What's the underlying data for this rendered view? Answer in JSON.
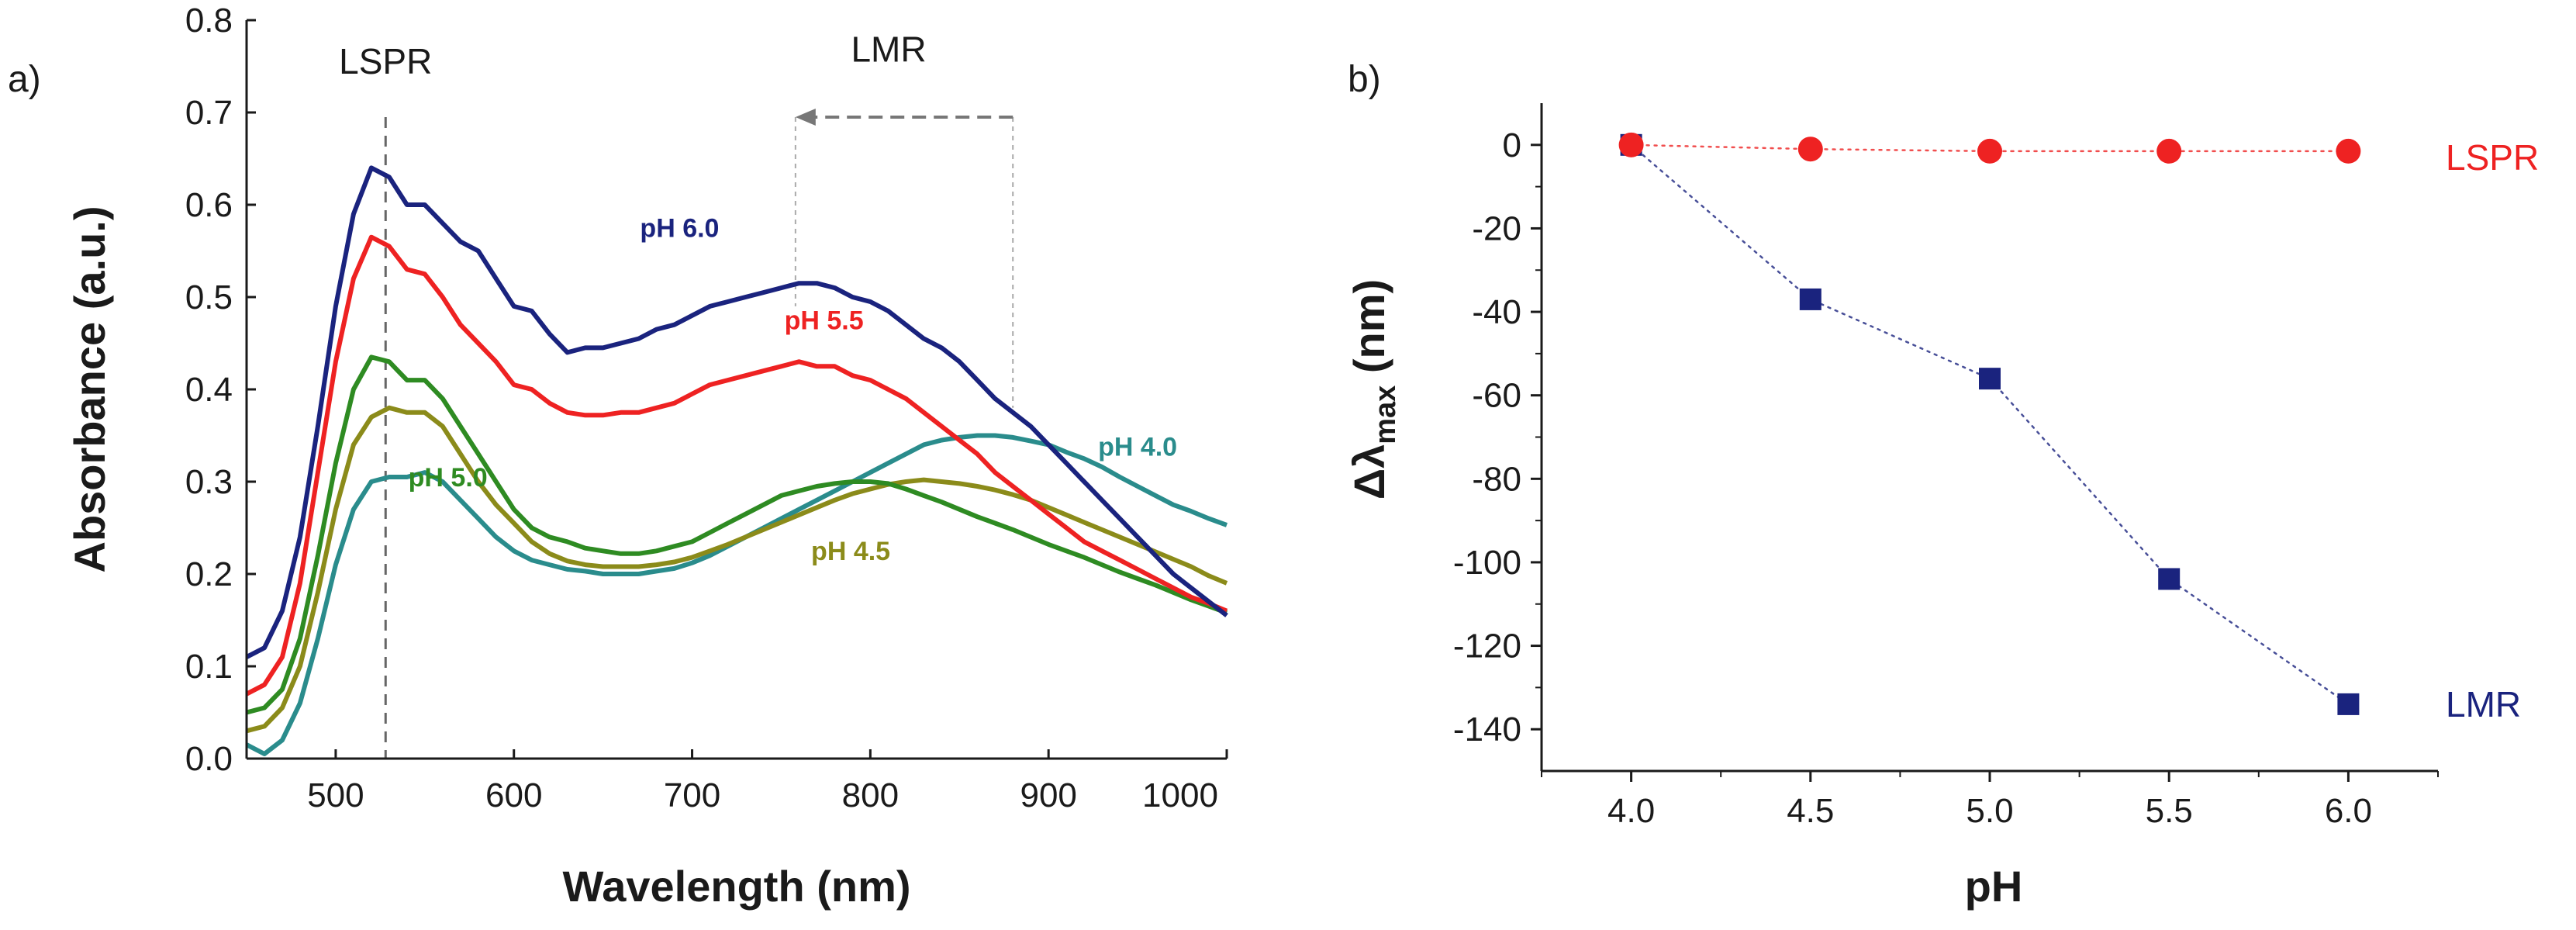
{
  "chart_data": [
    {
      "panel": "a)",
      "type": "line",
      "title": "",
      "xlabel": "Wavelength (nm)",
      "ylabel": "Absorbance (a.u.)",
      "xlim": [
        450,
        1000
      ],
      "ylim": [
        0.0,
        0.8
      ],
      "xticks": [
        500,
        600,
        700,
        800,
        900,
        1000
      ],
      "xtick_labels": [
        "500",
        "600",
        "700",
        "800",
        "900",
        "1000"
      ],
      "yticks": [
        0.0,
        0.1,
        0.2,
        0.3,
        0.4,
        0.5,
        0.6,
        0.7,
        0.8
      ],
      "ytick_labels": [
        "0.0",
        "0.1",
        "0.2",
        "0.3",
        "0.4",
        "0.5",
        "0.6",
        "0.7",
        "0.8"
      ],
      "grid": false,
      "annotations": {
        "lspr_label": "LSPR",
        "lspr_wavelength": 528,
        "lmr_label": "LMR",
        "lmr_arrow_from_nm": 880,
        "lmr_arrow_to_nm": 758,
        "lmr_arrow_y": 0.695
      },
      "series": [
        {
          "name": "pH 6.0",
          "color": "#1a237e",
          "label_x": 693,
          "label_y": 0.565,
          "x": [
            450,
            460,
            470,
            480,
            490,
            500,
            510,
            520,
            530,
            540,
            550,
            560,
            570,
            580,
            590,
            600,
            610,
            620,
            630,
            640,
            650,
            660,
            670,
            680,
            690,
            700,
            710,
            720,
            730,
            740,
            750,
            760,
            770,
            780,
            790,
            800,
            810,
            820,
            830,
            840,
            850,
            860,
            870,
            880,
            890,
            900,
            910,
            920,
            930,
            940,
            950,
            960,
            970,
            980,
            990,
            1000
          ],
          "values": [
            0.11,
            0.12,
            0.16,
            0.24,
            0.36,
            0.49,
            0.59,
            0.64,
            0.63,
            0.6,
            0.6,
            0.58,
            0.56,
            0.55,
            0.52,
            0.49,
            0.485,
            0.46,
            0.44,
            0.445,
            0.445,
            0.45,
            0.455,
            0.465,
            0.47,
            0.48,
            0.49,
            0.495,
            0.5,
            0.505,
            0.51,
            0.515,
            0.515,
            0.51,
            0.5,
            0.495,
            0.485,
            0.47,
            0.455,
            0.445,
            0.43,
            0.41,
            0.39,
            0.375,
            0.36,
            0.34,
            0.32,
            0.3,
            0.28,
            0.26,
            0.24,
            0.22,
            0.2,
            0.185,
            0.17,
            0.155
          ]
        },
        {
          "name": "pH 5.5",
          "color": "#ee2222",
          "label_x": 774,
          "label_y": 0.465,
          "x": [
            450,
            460,
            470,
            480,
            490,
            500,
            510,
            520,
            530,
            540,
            550,
            560,
            570,
            580,
            590,
            600,
            610,
            620,
            630,
            640,
            650,
            660,
            670,
            680,
            690,
            700,
            710,
            720,
            730,
            740,
            750,
            760,
            770,
            780,
            790,
            800,
            810,
            820,
            830,
            840,
            850,
            860,
            870,
            880,
            890,
            900,
            910,
            920,
            930,
            940,
            950,
            960,
            970,
            980,
            990,
            1000
          ],
          "values": [
            0.07,
            0.08,
            0.11,
            0.19,
            0.31,
            0.43,
            0.52,
            0.565,
            0.555,
            0.53,
            0.525,
            0.5,
            0.47,
            0.45,
            0.43,
            0.405,
            0.4,
            0.385,
            0.375,
            0.372,
            0.372,
            0.375,
            0.375,
            0.38,
            0.385,
            0.395,
            0.405,
            0.41,
            0.415,
            0.42,
            0.425,
            0.43,
            0.425,
            0.425,
            0.415,
            0.41,
            0.4,
            0.39,
            0.375,
            0.36,
            0.345,
            0.33,
            0.31,
            0.295,
            0.28,
            0.265,
            0.25,
            0.235,
            0.225,
            0.215,
            0.205,
            0.195,
            0.185,
            0.175,
            0.168,
            0.16
          ]
        },
        {
          "name": "pH 5.0",
          "color": "#2e8b22",
          "label_x": 563,
          "label_y": 0.295,
          "x": [
            450,
            460,
            470,
            480,
            490,
            500,
            510,
            520,
            530,
            540,
            550,
            560,
            570,
            580,
            590,
            600,
            610,
            620,
            630,
            640,
            650,
            660,
            670,
            680,
            690,
            700,
            710,
            720,
            730,
            740,
            750,
            760,
            770,
            780,
            790,
            800,
            810,
            820,
            830,
            840,
            850,
            860,
            870,
            880,
            890,
            900,
            910,
            920,
            930,
            940,
            950,
            960,
            970,
            980,
            990,
            1000
          ],
          "values": [
            0.05,
            0.055,
            0.075,
            0.13,
            0.22,
            0.32,
            0.4,
            0.435,
            0.43,
            0.41,
            0.41,
            0.39,
            0.36,
            0.33,
            0.3,
            0.27,
            0.25,
            0.24,
            0.235,
            0.228,
            0.225,
            0.222,
            0.222,
            0.225,
            0.23,
            0.235,
            0.245,
            0.255,
            0.265,
            0.275,
            0.285,
            0.29,
            0.295,
            0.298,
            0.3,
            0.3,
            0.298,
            0.292,
            0.285,
            0.278,
            0.27,
            0.262,
            0.255,
            0.248,
            0.24,
            0.232,
            0.225,
            0.218,
            0.21,
            0.202,
            0.195,
            0.188,
            0.18,
            0.172,
            0.165,
            0.158
          ]
        },
        {
          "name": "pH 4.5",
          "color": "#8b8b1a",
          "label_x": 789,
          "label_y": 0.215,
          "x": [
            450,
            460,
            470,
            480,
            490,
            500,
            510,
            520,
            530,
            540,
            550,
            560,
            570,
            580,
            590,
            600,
            610,
            620,
            630,
            640,
            650,
            660,
            670,
            680,
            690,
            700,
            710,
            720,
            730,
            740,
            750,
            760,
            770,
            780,
            790,
            800,
            810,
            820,
            830,
            840,
            850,
            860,
            870,
            880,
            890,
            900,
            910,
            920,
            930,
            940,
            950,
            960,
            970,
            980,
            990,
            1000
          ],
          "values": [
            0.03,
            0.035,
            0.055,
            0.1,
            0.18,
            0.27,
            0.34,
            0.37,
            0.38,
            0.375,
            0.375,
            0.36,
            0.33,
            0.3,
            0.275,
            0.255,
            0.235,
            0.222,
            0.214,
            0.21,
            0.208,
            0.208,
            0.208,
            0.21,
            0.213,
            0.218,
            0.225,
            0.232,
            0.24,
            0.248,
            0.256,
            0.264,
            0.272,
            0.28,
            0.287,
            0.292,
            0.297,
            0.3,
            0.302,
            0.3,
            0.298,
            0.295,
            0.291,
            0.286,
            0.28,
            0.272,
            0.264,
            0.256,
            0.248,
            0.24,
            0.232,
            0.224,
            0.216,
            0.208,
            0.198,
            0.19
          ]
        },
        {
          "name": "pH 4.0",
          "color": "#2a8c8c",
          "label_x": 950,
          "label_y": 0.328,
          "x": [
            450,
            460,
            470,
            480,
            490,
            500,
            510,
            520,
            530,
            540,
            550,
            560,
            570,
            580,
            590,
            600,
            610,
            620,
            630,
            640,
            650,
            660,
            670,
            680,
            690,
            700,
            710,
            720,
            730,
            740,
            750,
            760,
            770,
            780,
            790,
            800,
            810,
            820,
            830,
            840,
            850,
            860,
            870,
            880,
            890,
            900,
            910,
            920,
            930,
            940,
            950,
            960,
            970,
            980,
            990,
            1000
          ],
          "values": [
            0.015,
            0.005,
            0.02,
            0.06,
            0.13,
            0.21,
            0.27,
            0.3,
            0.305,
            0.305,
            0.31,
            0.3,
            0.28,
            0.26,
            0.24,
            0.225,
            0.215,
            0.21,
            0.205,
            0.203,
            0.2,
            0.2,
            0.2,
            0.203,
            0.206,
            0.212,
            0.22,
            0.23,
            0.24,
            0.25,
            0.26,
            0.27,
            0.28,
            0.29,
            0.3,
            0.31,
            0.32,
            0.33,
            0.34,
            0.345,
            0.348,
            0.35,
            0.35,
            0.348,
            0.344,
            0.34,
            0.332,
            0.325,
            0.316,
            0.305,
            0.295,
            0.285,
            0.275,
            0.268,
            0.26,
            0.253
          ]
        }
      ]
    },
    {
      "panel": "b)",
      "type": "scatter",
      "title": "",
      "xlabel": "pH",
      "ylabel": "Δλ max (nm)",
      "ylabel_symbol": "Δλ",
      "ylabel_sub": "max",
      "ylabel_rest": " (nm)",
      "xlim": [
        3.75,
        6.25
      ],
      "ylim": [
        -150,
        10
      ],
      "xticks": [
        4.0,
        4.5,
        5.0,
        5.5,
        6.0
      ],
      "xtick_labels": [
        "4.0",
        "4.5",
        "5.0",
        "5.5",
        "6.0"
      ],
      "yticks": [
        0,
        -20,
        -40,
        -60,
        -80,
        -100,
        -120,
        -140
      ],
      "ytick_labels": [
        "0",
        "-20",
        "-40",
        "-60",
        "-80",
        "-100",
        "-120",
        "-140"
      ],
      "grid": false,
      "series": [
        {
          "name": "LMR",
          "color": "#1a237e",
          "marker": "square",
          "label_x": 6.25,
          "label_y": -134,
          "x": [
            4.0,
            4.5,
            5.0,
            5.5,
            6.0
          ],
          "values": [
            0,
            -37,
            -56,
            -104,
            -134
          ]
        },
        {
          "name": "LSPR",
          "color": "#ee2222",
          "marker": "circle",
          "label_x": 6.25,
          "label_y": -3,
          "x": [
            4.0,
            4.5,
            5.0,
            5.5,
            6.0
          ],
          "values": [
            0,
            -1,
            -1.5,
            -1.5,
            -1.5
          ]
        }
      ]
    }
  ]
}
